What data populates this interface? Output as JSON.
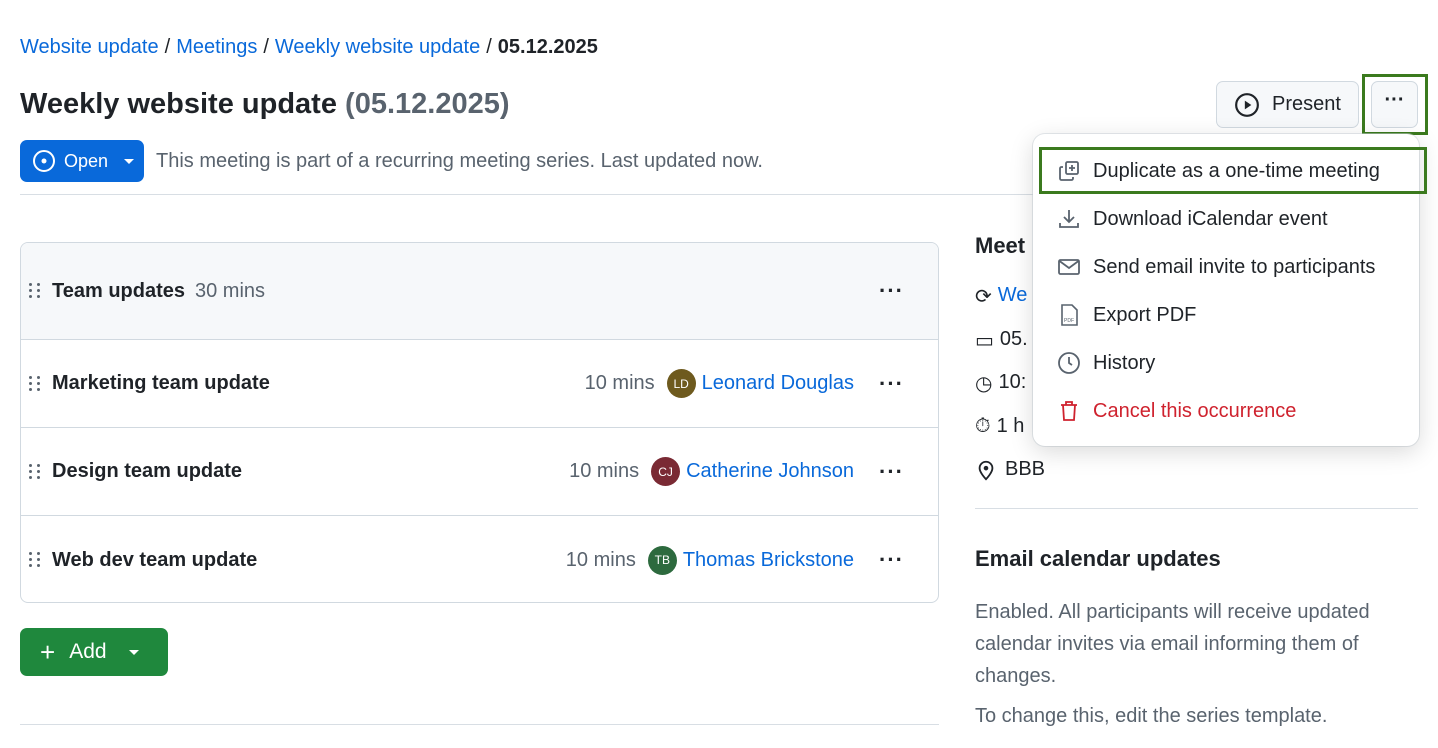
{
  "breadcrumb": {
    "items": [
      "Website update",
      "Meetings",
      "Weekly website update"
    ],
    "current": "05.12.2025",
    "separator": "/"
  },
  "header": {
    "title": "Weekly website update",
    "date": "(05.12.2025)",
    "present_label": "Present",
    "more_label": "···"
  },
  "status": {
    "state_label": "Open",
    "description": "This meeting is part of a recurring meeting series. Last updated now."
  },
  "agenda": {
    "section": {
      "title": "Team updates",
      "duration": "30 mins"
    },
    "items": [
      {
        "title": "Marketing team update",
        "duration": "10 mins",
        "initials": "LD",
        "presenter": "Leonard Douglas",
        "color": "#6e5a1e"
      },
      {
        "title": "Design team update",
        "duration": "10 mins",
        "initials": "CJ",
        "presenter": "Catherine Johnson",
        "color": "#7a2a34"
      },
      {
        "title": "Web dev team update",
        "duration": "10 mins",
        "initials": "TB",
        "presenter": "Thomas Brickstone",
        "color": "#2d6a3e"
      }
    ],
    "add_label": "Add"
  },
  "sidebar": {
    "details_heading": "Meet",
    "series": "We",
    "date": "05.",
    "time": "10:",
    "duration": "1 h",
    "location": "BBB",
    "email_heading": "Email calendar updates",
    "email_text": "Enabled. All participants will receive updated calendar invites via email informing them of changes.",
    "email_note": "To change this, edit the series template."
  },
  "menu": {
    "items": [
      {
        "label": "Duplicate as a one-time meeting",
        "icon": "duplicate-icon"
      },
      {
        "label": "Download iCalendar event",
        "icon": "download-icon"
      },
      {
        "label": "Send email invite to participants",
        "icon": "mail-icon"
      },
      {
        "label": "Export PDF",
        "icon": "pdf-file-icon"
      },
      {
        "label": "History",
        "icon": "clock-icon"
      },
      {
        "label": "Cancel this occurrence",
        "icon": "trash-icon",
        "danger": true
      }
    ]
  },
  "colors": {
    "accent": "#0969da",
    "success": "#1f883d",
    "danger": "#cf222e",
    "highlight": "#3b7a1e"
  }
}
